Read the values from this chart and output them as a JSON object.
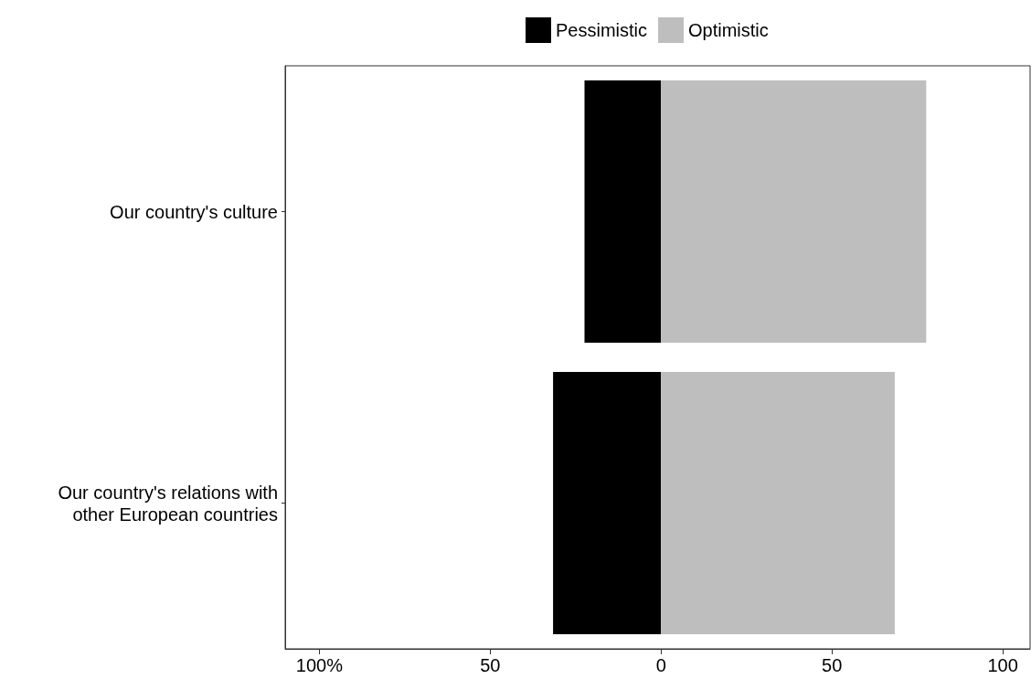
{
  "chart_data": {
    "type": "bar",
    "orientation": "horizontal",
    "stacked": true,
    "categories": [
      "Our country's culture",
      "Our country's relations with\nother European countries"
    ],
    "series": [
      {
        "name": "Pessimistic",
        "color": "#000000",
        "values": [
          -22.4,
          -31.6
        ]
      },
      {
        "name": "Optimistic",
        "color": "#bebebe",
        "values": [
          77.6,
          68.4
        ]
      }
    ],
    "xlim": [
      -110,
      108
    ],
    "xticks": [
      {
        "value": -100,
        "label": "100%"
      },
      {
        "value": -50,
        "label": "50"
      },
      0,
      50,
      100
    ],
    "grid": false,
    "legend": "top"
  }
}
